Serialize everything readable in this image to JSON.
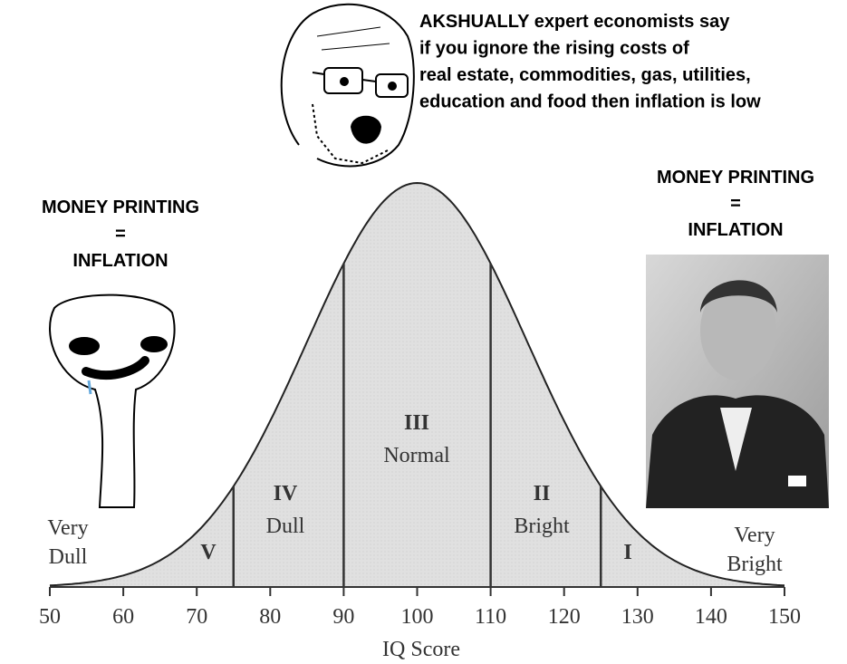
{
  "caption": {
    "lines": [
      "AKSHUALLY expert economists say",
      "if you ignore the rising costs of",
      "real estate, commodities, gas, utilities,",
      "education and food then inflation is low"
    ]
  },
  "left_panel": {
    "lines": [
      "MONEY PRINTING",
      "=",
      "INFLATION"
    ]
  },
  "right_panel": {
    "lines": [
      "MONEY PRINTING",
      "=",
      "INFLATION"
    ]
  },
  "chart_data": {
    "type": "bell",
    "xlabel": "IQ Score",
    "xlim": [
      50,
      150
    ],
    "xticks": [
      50,
      60,
      70,
      80,
      90,
      100,
      110,
      120,
      130,
      140,
      150
    ],
    "dividers": [
      75,
      90,
      110,
      125
    ],
    "regions": [
      {
        "numeral": "V"
      },
      {
        "numeral": "IV",
        "label": "Dull"
      },
      {
        "numeral": "III",
        "label": "Normal"
      },
      {
        "numeral": "II",
        "label": "Bright"
      },
      {
        "numeral": "I"
      }
    ],
    "tails": [
      [
        "Very",
        "Dull"
      ],
      [
        "Very",
        "Bright"
      ]
    ],
    "color": "#dedede"
  }
}
